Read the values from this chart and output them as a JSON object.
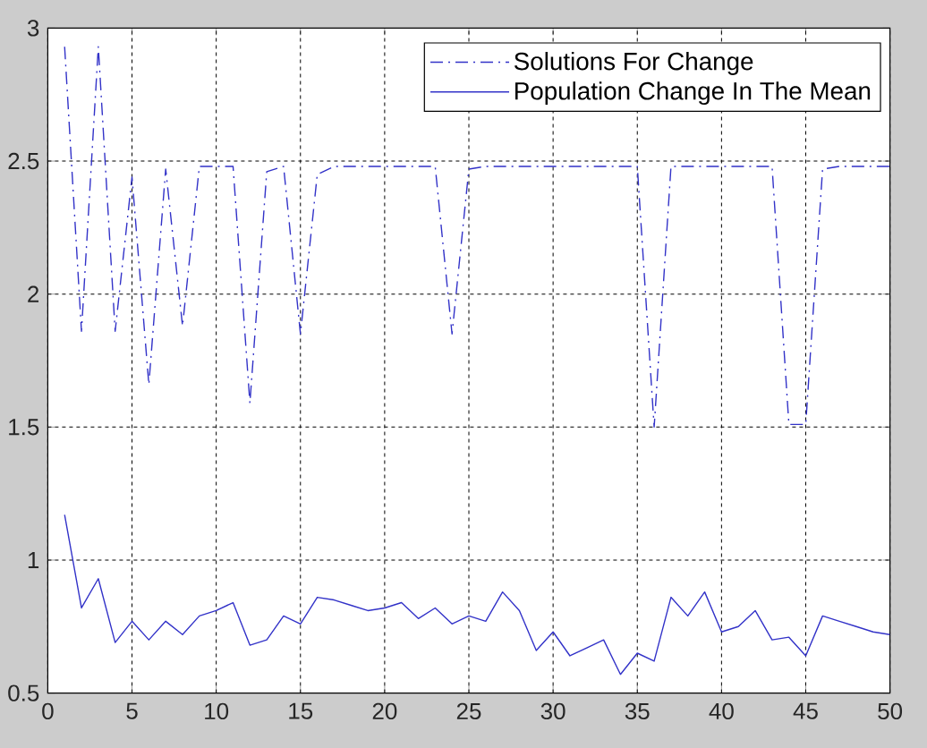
{
  "chart_data": {
    "type": "line",
    "x": [
      1,
      2,
      3,
      4,
      5,
      6,
      7,
      8,
      9,
      10,
      11,
      12,
      13,
      14,
      15,
      16,
      17,
      18,
      19,
      20,
      21,
      22,
      23,
      24,
      25,
      26,
      27,
      28,
      29,
      30,
      31,
      32,
      33,
      34,
      35,
      36,
      37,
      38,
      39,
      40,
      41,
      42,
      43,
      44,
      45,
      46,
      47,
      48,
      49,
      50
    ],
    "series": [
      {
        "name": "Solutions For Change",
        "color": "#3232c8",
        "line_style": "dashdot",
        "values": [
          2.93,
          1.86,
          2.93,
          1.86,
          2.44,
          1.66,
          2.47,
          1.88,
          2.48,
          2.48,
          2.48,
          1.59,
          2.46,
          2.48,
          1.85,
          2.45,
          2.48,
          2.48,
          2.48,
          2.48,
          2.48,
          2.48,
          2.48,
          1.85,
          2.47,
          2.48,
          2.48,
          2.48,
          2.48,
          2.48,
          2.48,
          2.48,
          2.48,
          2.48,
          2.48,
          1.5,
          2.48,
          2.48,
          2.48,
          2.48,
          2.48,
          2.48,
          2.48,
          1.51,
          1.51,
          2.47,
          2.48,
          2.48,
          2.48,
          2.48
        ]
      },
      {
        "name": "Population Change In The Mean",
        "color": "#3232c8",
        "line_style": "solid",
        "values": [
          1.17,
          0.82,
          0.93,
          0.69,
          0.77,
          0.7,
          0.77,
          0.72,
          0.79,
          0.81,
          0.84,
          0.68,
          0.7,
          0.79,
          0.76,
          0.86,
          0.85,
          0.83,
          0.81,
          0.82,
          0.84,
          0.78,
          0.82,
          0.76,
          0.79,
          0.77,
          0.88,
          0.81,
          0.66,
          0.73,
          0.64,
          0.67,
          0.7,
          0.57,
          0.65,
          0.62,
          0.86,
          0.79,
          0.88,
          0.73,
          0.75,
          0.81,
          0.7,
          0.71,
          0.64,
          0.79,
          0.77,
          0.75,
          0.73,
          0.72
        ]
      }
    ],
    "xlim": [
      0,
      50
    ],
    "ylim": [
      0.5,
      3
    ],
    "xticks": [
      0,
      5,
      10,
      15,
      20,
      25,
      30,
      35,
      40,
      45,
      50
    ],
    "yticks": [
      0.5,
      1,
      1.5,
      2,
      2.5,
      3
    ],
    "grid": true,
    "legend": "top right",
    "marker": "none"
  }
}
